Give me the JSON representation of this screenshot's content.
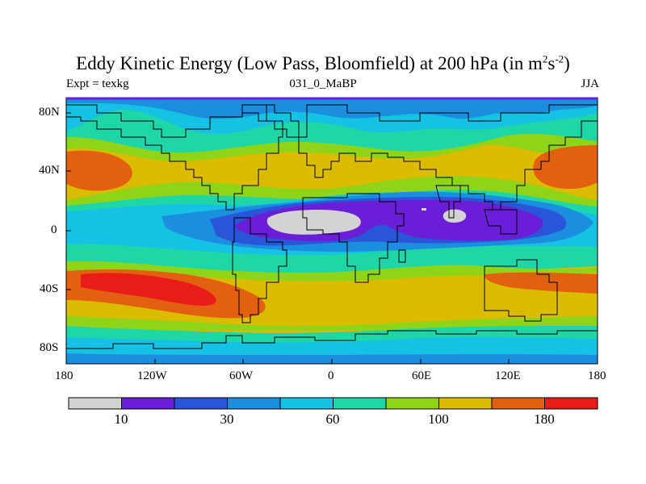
{
  "title": {
    "prefix": "Eddy Kinetic Energy (Low Pass, Bloomfield) at 200 hPa (in m",
    "sup1": "2",
    "mid": "s",
    "sup2": "-2",
    "suffix": ")"
  },
  "subtitle": {
    "left": "Expt = texkg",
    "center": "031_0_MaBP",
    "right": "JJA"
  },
  "axes": {
    "y_labels": [
      "80N",
      "40N",
      "0",
      "40S",
      "80S"
    ],
    "x_labels": [
      "180",
      "120W",
      "60W",
      "0",
      "60E",
      "120E",
      "180"
    ]
  },
  "colorbar": {
    "colors": [
      "#d3d3d3",
      "#6a1ed8",
      "#2a55d8",
      "#1b8ee0",
      "#16c2e4",
      "#1ed6a6",
      "#8fd418",
      "#dcbc00",
      "#e26010",
      "#e81c18"
    ],
    "labels": [
      "10",
      "30",
      "60",
      "100",
      "180"
    ]
  },
  "colors": {
    "frame": "#6a1ed8",
    "coast": "#000000"
  }
}
